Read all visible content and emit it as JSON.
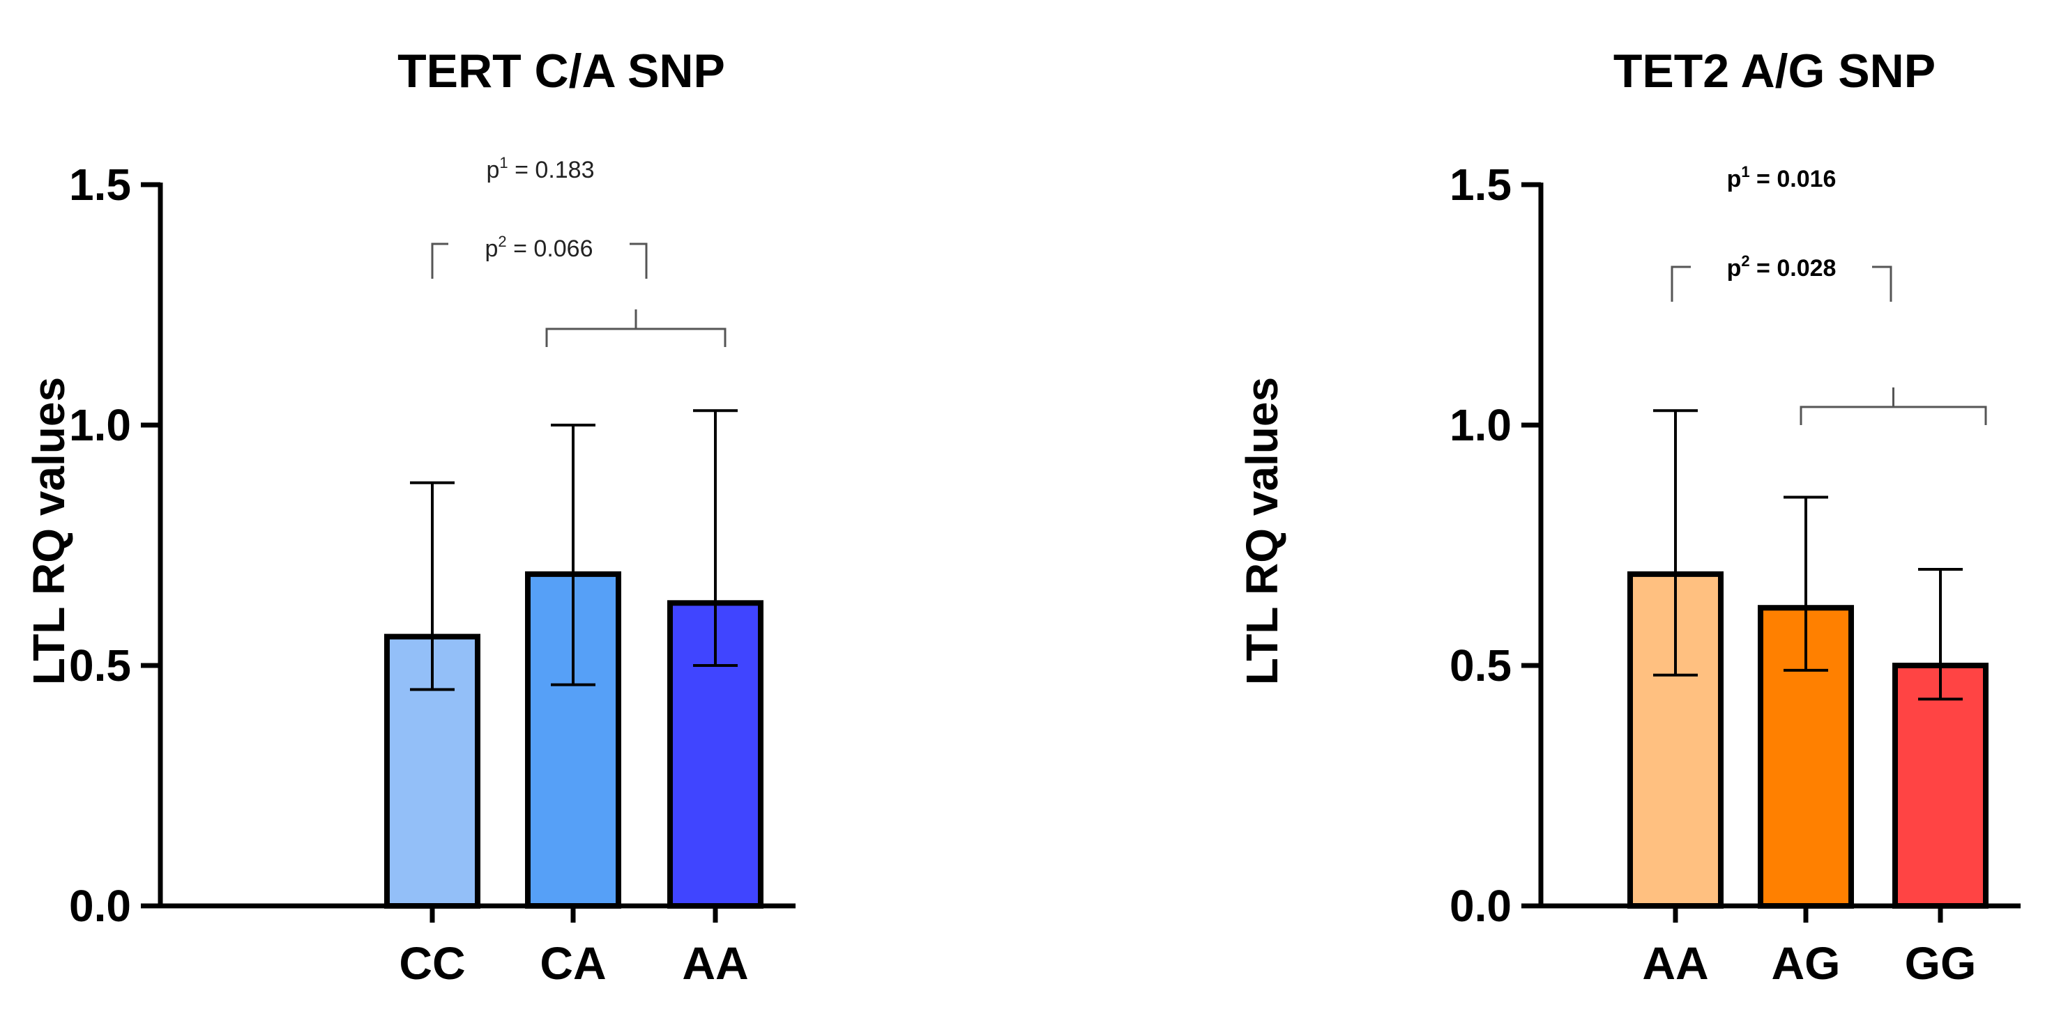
{
  "chart_data": [
    {
      "type": "bar",
      "title": "TERT C/A SNP",
      "ylabel": "LTL RQ values",
      "xlabel": "",
      "ylim": [
        0,
        1.5
      ],
      "yticks": [
        "0.0",
        "0.5",
        "1.0",
        "1.5"
      ],
      "ytick_values": [
        0,
        0.5,
        1.0,
        1.5
      ],
      "categories": [
        "CC",
        "CA",
        "AA"
      ],
      "values": [
        0.56,
        0.69,
        0.63
      ],
      "error_low": [
        0.45,
        0.46,
        0.5
      ],
      "error_high": [
        0.88,
        1.0,
        1.03
      ],
      "colors": [
        "#93BFF8",
        "#56A0F7",
        "#4045FF"
      ],
      "annotations": {
        "p1_prefix": "p",
        "p1_sup": "1",
        "p1_value": "= 0.183",
        "p2_prefix": "p",
        "p2_sup": "2",
        "p2_value": "= 0.066",
        "bold": false
      }
    },
    {
      "type": "bar",
      "title": "TET2 A/G SNP",
      "ylabel": "LTL RQ values",
      "xlabel": "",
      "ylim": [
        0,
        1.5
      ],
      "yticks": [
        "0.0",
        "0.5",
        "1.0",
        "1.5"
      ],
      "ytick_values": [
        0,
        0.5,
        1.0,
        1.5
      ],
      "categories": [
        "AA",
        "AG",
        "GG"
      ],
      "values": [
        0.69,
        0.62,
        0.5
      ],
      "error_low": [
        0.48,
        0.49,
        0.43
      ],
      "error_high": [
        1.03,
        0.85,
        0.7
      ],
      "colors": [
        "#FFC080",
        "#FF8000",
        "#FF4444"
      ],
      "annotations": {
        "p1_prefix": "p",
        "p1_sup": "1",
        "p1_value": "= 0.016",
        "p2_prefix": "p",
        "p2_sup": "2",
        "p2_value": "= 0.028",
        "bold": true
      }
    }
  ]
}
